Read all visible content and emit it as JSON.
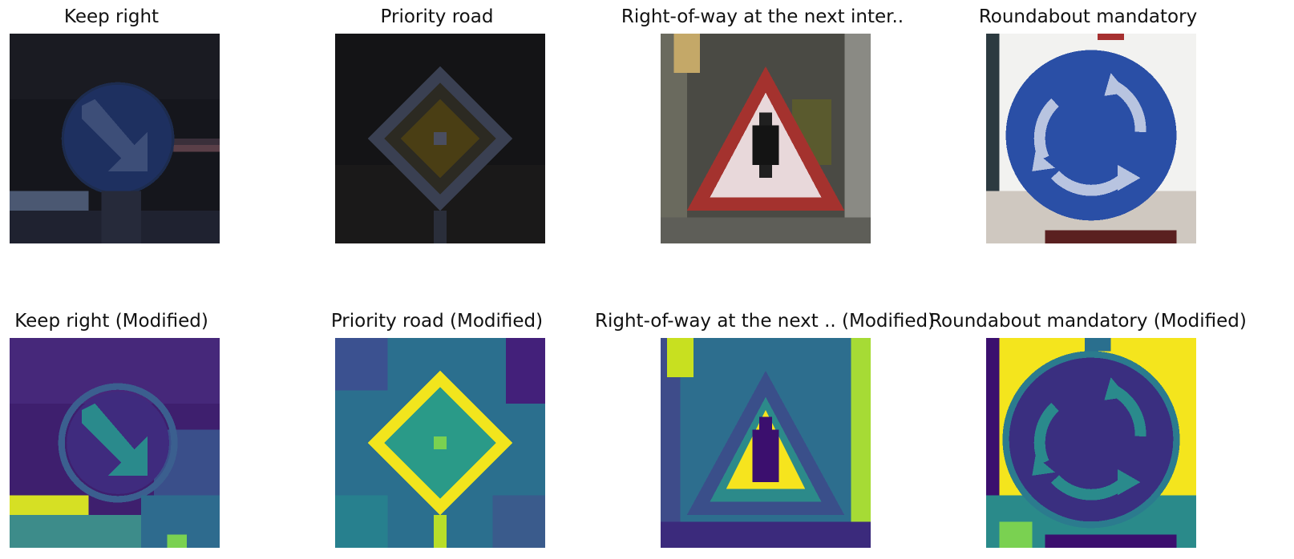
{
  "figure": {
    "panels": [
      {
        "title": "Keep right",
        "icon": "keep-right-sign-photo",
        "style": "rgb"
      },
      {
        "title": "Priority road",
        "icon": "priority-road-sign-photo",
        "style": "rgb"
      },
      {
        "title": "Right-of-way at the next inter..",
        "icon": "right-of-way-sign-photo",
        "style": "rgb"
      },
      {
        "title": "Roundabout mandatory",
        "icon": "roundabout-sign-photo",
        "style": "rgb"
      },
      {
        "title": "Keep right (Modified)",
        "icon": "keep-right-sign-viridis",
        "style": "viridis"
      },
      {
        "title": "Priority road (Modified)",
        "icon": "priority-road-sign-viridis",
        "style": "viridis"
      },
      {
        "title": "Right-of-way at the next .. (Modified)",
        "icon": "right-of-way-sign-viridis",
        "style": "viridis"
      },
      {
        "title": "Roundabout mandatory (Modified)",
        "icon": "roundabout-sign-viridis",
        "style": "viridis"
      }
    ]
  }
}
